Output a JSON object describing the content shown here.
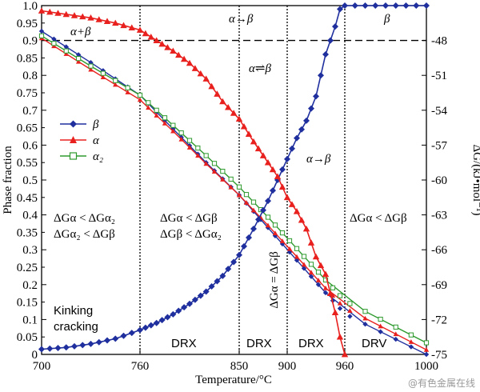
{
  "chart_data": {
    "type": "line",
    "xlabel": "Temperature/°C",
    "ylabel_left": "Phase fraction",
    "ylabel_right": "ΔG/(kJ•mol⁻¹)",
    "x_tick_labels": [
      "700",
      "760",
      "850",
      "900",
      "960",
      "1000"
    ],
    "y_ticks_left": [
      0,
      0.05,
      0.1,
      0.15,
      0.2,
      0.25,
      0.3,
      0.35,
      0.4,
      0.45,
      0.5,
      0.55,
      0.6,
      0.65,
      0.7,
      0.75,
      0.8,
      0.85,
      0.9,
      0.95,
      1.0
    ],
    "y_tick_labels_left": [
      "0",
      "0.05",
      "0.1",
      "0.15",
      "0.2",
      "0.25",
      "0.3",
      "0.35",
      "0.4",
      "0.45",
      "0.5",
      "0.55",
      "0.6",
      "0.65",
      "0.7",
      "0.75",
      "0.8",
      "0.85",
      "0.9",
      "0.95",
      "1.0"
    ],
    "y_ticks_right": [
      -48,
      -51,
      -54,
      -57,
      -60,
      -63,
      -66,
      -69,
      -72,
      -75
    ],
    "y_tick_labels_right": [
      "-48",
      "-51",
      "-54",
      "-57",
      "-60",
      "-63",
      "-66",
      "-69",
      "-72",
      "-75"
    ],
    "ylim_left": [
      0,
      1.0
    ],
    "ylim_right": [
      -75,
      -45
    ],
    "vertical_lines_x": [
      760,
      850,
      900,
      960
    ],
    "dashed_hline_fraction": 0.9,
    "legend": [
      {
        "label": "β",
        "color": "#1f2f9e",
        "marker": "diamond-filled"
      },
      {
        "label": "α",
        "color": "#e8201e",
        "marker": "triangle-filled"
      },
      {
        "label": "α₂",
        "color": "#2e9a2e",
        "marker": "square-open"
      }
    ],
    "phase_fraction_series": [
      {
        "name": "β",
        "color": "#1f2f9e",
        "x": [
          700,
          715,
          730,
          745,
          760,
          775,
          790,
          805,
          820,
          835,
          850,
          865,
          880,
          890,
          900,
          910,
          920,
          930,
          940,
          950,
          955,
          960,
          970,
          980,
          990,
          1000
        ],
        "y": [
          0.015,
          0.02,
          0.03,
          0.045,
          0.07,
          0.09,
          0.115,
          0.145,
          0.18,
          0.225,
          0.285,
          0.36,
          0.44,
          0.5,
          0.56,
          0.62,
          0.67,
          0.74,
          0.86,
          0.94,
          0.99,
          1.0,
          1.0,
          1.0,
          1.0,
          1.0
        ]
      },
      {
        "name": "α",
        "color": "#e8201e",
        "x": [
          700,
          715,
          730,
          745,
          760,
          775,
          790,
          805,
          820,
          835,
          850,
          865,
          880,
          890,
          900,
          910,
          920,
          930,
          940,
          950,
          955,
          960
        ],
        "y": [
          0.985,
          0.975,
          0.965,
          0.95,
          0.93,
          0.9,
          0.87,
          0.835,
          0.79,
          0.725,
          0.675,
          0.61,
          0.55,
          0.51,
          0.45,
          0.41,
          0.36,
          0.28,
          0.23,
          0.12,
          0.05,
          0.0
        ]
      }
    ],
    "free_energy_series": [
      {
        "name": "β",
        "color": "#1f2f9e",
        "x": [
          700,
          730,
          760,
          790,
          820,
          850,
          880,
          910,
          940,
          970,
          1000
        ],
        "y": [
          -47.2,
          -49.9,
          -52.7,
          -55.6,
          -58.5,
          -61.3,
          -64.1,
          -66.9,
          -69.7,
          -72.4,
          -75.0
        ]
      },
      {
        "name": "α",
        "color": "#e8201e",
        "x": [
          700,
          730,
          760,
          790,
          820,
          850,
          880,
          910,
          940,
          970,
          1000
        ],
        "y": [
          -47.8,
          -50.5,
          -53.1,
          -55.8,
          -58.6,
          -61.3,
          -63.9,
          -66.6,
          -69.3,
          -71.9,
          -74.6
        ]
      },
      {
        "name": "α₂",
        "color": "#2e9a2e",
        "x": [
          700,
          730,
          760,
          790,
          820,
          850,
          880,
          910,
          940,
          970,
          1000
        ],
        "y": [
          -47.6,
          -50.2,
          -52.7,
          -55.3,
          -57.9,
          -60.6,
          -63.2,
          -65.9,
          -68.6,
          -71.3,
          -74.0
        ]
      }
    ],
    "annotations": {
      "alpha_beta": "α+β",
      "alpha_to_beta_top": "α→β",
      "beta": "β",
      "alpha_eq_beta": "α⇌β",
      "alpha_to_beta_mid": "α→β",
      "region1_line1": "ΔGα < ΔGα₂",
      "region1_line2": "ΔGα₂ < ΔGβ",
      "region2_line1": "ΔGα < ΔGβ",
      "region2_line2": "ΔGβ < ΔGα₂",
      "region_right": "ΔGα < ΔGβ",
      "vertical_eq": "ΔGα = ΔGβ",
      "kinking_line1": "Kinking",
      "kinking_line2": "cracking",
      "drx1": "DRX",
      "drx2": "DRX",
      "drx3": "DRX",
      "drv": "DRV"
    },
    "watermark": "@有色金属在线"
  }
}
